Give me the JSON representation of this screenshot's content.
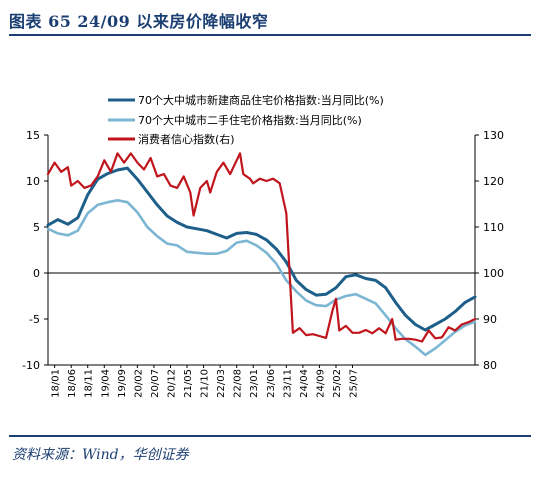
{
  "header": {
    "title": "图表 65    24/09 以来房价降幅收窄"
  },
  "footer": {
    "source": "资料来源：Wind，华创证券"
  },
  "colors": {
    "new_home": "#1d5f8a",
    "second_hand": "#7cb6d3",
    "confidence": "#c0151c",
    "frame": "#1c3f73"
  },
  "chart_data": {
    "type": "line",
    "title": "24/09 以来房价降幅收窄",
    "x_tick_labels": [
      "18/01",
      "18/06",
      "18/11",
      "19/04",
      "19/09",
      "20/02",
      "20/07",
      "20/12",
      "21/05",
      "21/10",
      "22/03",
      "22/08",
      "23/01",
      "23/06",
      "23/11",
      "24/04",
      "24/09",
      "25/02",
      "25/07"
    ],
    "legend": [
      "70个大中城市新建商品住宅价格指数:当月同比(%)",
      "70个大中城市二手住宅价格指数:当月同比(%)",
      "消费者信心指数(右)"
    ],
    "legend_placement": "top-center",
    "left_axis": {
      "ticks": [
        "15",
        "10",
        "5",
        "0",
        "-5",
        "-10"
      ],
      "range": [
        -10,
        15
      ]
    },
    "right_axis": {
      "ticks": [
        "130",
        "120",
        "110",
        "100",
        "90",
        "80"
      ],
      "range": [
        80,
        130
      ]
    },
    "grid": false,
    "series": [
      {
        "name": "70个大中城市新建商品住宅价格指数:当月同比(%)",
        "axis": "left",
        "points": [
          [
            0,
            5.2
          ],
          [
            3,
            5.8
          ],
          [
            6,
            5.3
          ],
          [
            9,
            6.0
          ],
          [
            12,
            8.5
          ],
          [
            15,
            10.2
          ],
          [
            18,
            10.8
          ],
          [
            21,
            11.2
          ],
          [
            24,
            11.4
          ],
          [
            27,
            10.2
          ],
          [
            30,
            8.8
          ],
          [
            33,
            7.4
          ],
          [
            36,
            6.2
          ],
          [
            39,
            5.5
          ],
          [
            42,
            5.0
          ],
          [
            45,
            4.8
          ],
          [
            48,
            4.6
          ],
          [
            51,
            4.2
          ],
          [
            54,
            3.8
          ],
          [
            57,
            4.3
          ],
          [
            60,
            4.4
          ],
          [
            63,
            4.2
          ],
          [
            66,
            3.6
          ],
          [
            69,
            2.6
          ],
          [
            72,
            1.2
          ],
          [
            75,
            -0.8
          ],
          [
            78,
            -1.8
          ],
          [
            81,
            -2.4
          ],
          [
            84,
            -2.3
          ],
          [
            87,
            -1.6
          ],
          [
            90,
            -0.4
          ],
          [
            93,
            -0.2
          ],
          [
            96,
            -0.6
          ],
          [
            99,
            -0.8
          ],
          [
            102,
            -1.6
          ],
          [
            105,
            -3.2
          ],
          [
            108,
            -4.6
          ],
          [
            111,
            -5.6
          ],
          [
            114,
            -6.2
          ],
          [
            117,
            -5.6
          ],
          [
            120,
            -5.0
          ],
          [
            123,
            -4.2
          ],
          [
            126,
            -3.2
          ],
          [
            129,
            -2.6
          ]
        ]
      },
      {
        "name": "70个大中城市二手住宅价格指数:当月同比(%)",
        "axis": "left",
        "points": [
          [
            0,
            4.8
          ],
          [
            3,
            4.3
          ],
          [
            6,
            4.1
          ],
          [
            9,
            4.6
          ],
          [
            12,
            6.5
          ],
          [
            15,
            7.4
          ],
          [
            18,
            7.7
          ],
          [
            21,
            7.9
          ],
          [
            24,
            7.7
          ],
          [
            27,
            6.6
          ],
          [
            30,
            5.0
          ],
          [
            33,
            4.0
          ],
          [
            36,
            3.2
          ],
          [
            39,
            3.0
          ],
          [
            42,
            2.3
          ],
          [
            45,
            2.2
          ],
          [
            48,
            2.1
          ],
          [
            51,
            2.1
          ],
          [
            54,
            2.4
          ],
          [
            57,
            3.3
          ],
          [
            60,
            3.5
          ],
          [
            63,
            3.0
          ],
          [
            66,
            2.2
          ],
          [
            69,
            1.0
          ],
          [
            72,
            -0.8
          ],
          [
            75,
            -2.0
          ],
          [
            78,
            -3.0
          ],
          [
            81,
            -3.5
          ],
          [
            84,
            -3.6
          ],
          [
            87,
            -2.9
          ],
          [
            90,
            -2.5
          ],
          [
            93,
            -2.3
          ],
          [
            96,
            -2.8
          ],
          [
            99,
            -3.3
          ],
          [
            102,
            -4.6
          ],
          [
            105,
            -6.0
          ],
          [
            108,
            -7.2
          ],
          [
            111,
            -8.0
          ],
          [
            114,
            -8.9
          ],
          [
            117,
            -8.2
          ],
          [
            120,
            -7.3
          ],
          [
            123,
            -6.4
          ],
          [
            126,
            -5.7
          ],
          [
            129,
            -5.3
          ]
        ]
      },
      {
        "name": "消费者信心指数(右)",
        "axis": "right",
        "points": [
          [
            0,
            121.5
          ],
          [
            2,
            124
          ],
          [
            4,
            122
          ],
          [
            6,
            123
          ],
          [
            7,
            119
          ],
          [
            9,
            120
          ],
          [
            11,
            118.5
          ],
          [
            13,
            119
          ],
          [
            15,
            121
          ],
          [
            17,
            124.5
          ],
          [
            19,
            122
          ],
          [
            21,
            126
          ],
          [
            23,
            124
          ],
          [
            25,
            126
          ],
          [
            27,
            124
          ],
          [
            29,
            122.5
          ],
          [
            31,
            125
          ],
          [
            33,
            121
          ],
          [
            35,
            121.5
          ],
          [
            37,
            119
          ],
          [
            39,
            118.5
          ],
          [
            41,
            121
          ],
          [
            43,
            117.5
          ],
          [
            44,
            112.5
          ],
          [
            46,
            118.5
          ],
          [
            48,
            120
          ],
          [
            49,
            117.5
          ],
          [
            51,
            122
          ],
          [
            53,
            124
          ],
          [
            55,
            121.5
          ],
          [
            57,
            124.5
          ],
          [
            58,
            126
          ],
          [
            59,
            121.5
          ],
          [
            61,
            120.5
          ],
          [
            62,
            119.5
          ],
          [
            64,
            120.5
          ],
          [
            66,
            120
          ],
          [
            68,
            120.5
          ],
          [
            70,
            119.5
          ],
          [
            72,
            113
          ],
          [
            74,
            87
          ],
          [
            76,
            88
          ],
          [
            78,
            86.5
          ],
          [
            80,
            86.7
          ],
          [
            82,
            86.3
          ],
          [
            84,
            85.9
          ],
          [
            86,
            92
          ],
          [
            87,
            94.4
          ],
          [
            88,
            87.5
          ],
          [
            90,
            88.5
          ],
          [
            92,
            87
          ],
          [
            94,
            87
          ],
          [
            96,
            87.6
          ],
          [
            98,
            86.9
          ],
          [
            100,
            88
          ],
          [
            102,
            86.9
          ],
          [
            104,
            90
          ],
          [
            105,
            85.5
          ],
          [
            107,
            85.7
          ],
          [
            109,
            85.7
          ],
          [
            111,
            85.5
          ],
          [
            113,
            85.1
          ],
          [
            115,
            87.5
          ],
          [
            117,
            85.8
          ],
          [
            119,
            86
          ],
          [
            121,
            88.2
          ],
          [
            123,
            87.5
          ],
          [
            125,
            88.8
          ],
          [
            127,
            89.3
          ],
          [
            129,
            90
          ]
        ]
      }
    ]
  }
}
